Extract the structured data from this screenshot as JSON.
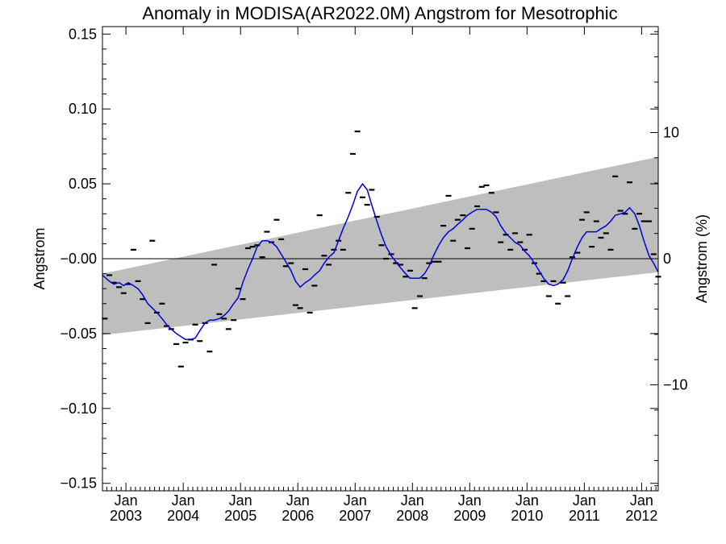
{
  "chart_data": {
    "type": "line",
    "title": "Anomaly in MODISA(AR2022.0M) Angstrom for Mesotrophic",
    "ylabel": "Angstrom",
    "y2label": "Angstrom (%)",
    "xlabel": "",
    "ylim": [
      -0.155,
      0.155
    ],
    "y2lim": [
      -18.4,
      18.4
    ],
    "xlim": [
      2002.59,
      2012.29
    ],
    "yticks": [
      -0.15,
      -0.1,
      -0.05,
      -0.0,
      0.05,
      0.1,
      0.15
    ],
    "ytick_labels": [
      "−0.15",
      "−0.10",
      "−0.05",
      "−0.00",
      "0.05",
      "0.10",
      "0.15"
    ],
    "y2ticks": [
      -10,
      0,
      10
    ],
    "y2tick_labels": [
      "−10",
      "0",
      "10"
    ],
    "xticks": [
      {
        "x": 2003.0,
        "top": "Jan",
        "bottom": "2003"
      },
      {
        "x": 2004.0,
        "top": "Jan",
        "bottom": "2004"
      },
      {
        "x": 2005.0,
        "top": "Jan",
        "bottom": "2005"
      },
      {
        "x": 2006.0,
        "top": "Jan",
        "bottom": "2006"
      },
      {
        "x": 2007.0,
        "top": "Jan",
        "bottom": "2007"
      },
      {
        "x": 2008.0,
        "top": "Jan",
        "bottom": "2008"
      },
      {
        "x": 2009.0,
        "top": "Jan",
        "bottom": "2009"
      },
      {
        "x": 2010.0,
        "top": "Jan",
        "bottom": "2010"
      },
      {
        "x": 2011.0,
        "top": "Jan",
        "bottom": "2011"
      },
      {
        "x": 2012.0,
        "top": "Jan",
        "bottom": "2012"
      }
    ],
    "band": {
      "x": [
        2002.59,
        2012.29
      ],
      "upper": [
        -0.01,
        0.068
      ],
      "lower": [
        -0.051,
        -0.009
      ],
      "color": "#bebebe"
    },
    "zero_line": 0.0,
    "series": [
      {
        "style": "dash",
        "color": "#000000",
        "points": [
          [
            2002.63,
            -0.04
          ],
          [
            2002.71,
            -0.011
          ],
          [
            2002.79,
            -0.016
          ],
          [
            2002.88,
            -0.019
          ],
          [
            2002.96,
            -0.023
          ],
          [
            2003.04,
            -0.017
          ],
          [
            2003.13,
            0.006
          ],
          [
            2003.21,
            -0.015
          ],
          [
            2003.29,
            -0.027
          ],
          [
            2003.38,
            -0.043
          ],
          [
            2003.46,
            0.012
          ],
          [
            2003.54,
            -0.036
          ],
          [
            2003.63,
            -0.03
          ],
          [
            2003.71,
            -0.045
          ],
          [
            2003.79,
            -0.047
          ],
          [
            2003.88,
            -0.057
          ],
          [
            2003.96,
            -0.072
          ],
          [
            2004.04,
            -0.056
          ],
          [
            2004.13,
            -0.054
          ],
          [
            2004.21,
            -0.044
          ],
          [
            2004.29,
            -0.055
          ],
          [
            2004.38,
            -0.043
          ],
          [
            2004.46,
            -0.062
          ],
          [
            2004.54,
            -0.004
          ],
          [
            2004.63,
            -0.037
          ],
          [
            2004.71,
            -0.04
          ],
          [
            2004.79,
            -0.047
          ],
          [
            2004.88,
            -0.041
          ],
          [
            2004.96,
            -0.02
          ],
          [
            2005.04,
            -0.027
          ],
          [
            2005.13,
            0.007
          ],
          [
            2005.21,
            0.008
          ],
          [
            2005.29,
            0.009
          ],
          [
            2005.38,
            0.001
          ],
          [
            2005.46,
            0.018
          ],
          [
            2005.54,
            0.011
          ],
          [
            2005.63,
            0.026
          ],
          [
            2005.71,
            0.013
          ],
          [
            2005.79,
            -0.005
          ],
          [
            2005.88,
            -0.003
          ],
          [
            2005.96,
            -0.031
          ],
          [
            2006.04,
            -0.033
          ],
          [
            2006.13,
            -0.007
          ],
          [
            2006.21,
            -0.036
          ],
          [
            2006.29,
            -0.018
          ],
          [
            2006.38,
            0.029
          ],
          [
            2006.46,
            0.002
          ],
          [
            2006.54,
            -0.004
          ],
          [
            2006.63,
            0.006
          ],
          [
            2006.71,
            0.012
          ],
          [
            2006.79,
            0.006
          ],
          [
            2006.88,
            0.044
          ],
          [
            2006.96,
            0.07
          ],
          [
            2007.04,
            0.085
          ],
          [
            2007.13,
            0.041
          ],
          [
            2007.21,
            0.036
          ],
          [
            2007.29,
            0.046
          ],
          [
            2007.38,
            0.028
          ],
          [
            2007.46,
            0.009
          ],
          [
            2007.54,
            0.0
          ],
          [
            2007.63,
            0.003
          ],
          [
            2007.71,
            -0.003
          ],
          [
            2007.79,
            -0.004
          ],
          [
            2007.88,
            -0.012
          ],
          [
            2007.96,
            -0.008
          ],
          [
            2008.04,
            -0.033
          ],
          [
            2008.13,
            -0.025
          ],
          [
            2008.21,
            -0.013
          ],
          [
            2008.29,
            -0.003
          ],
          [
            2008.38,
            -0.002
          ],
          [
            2008.46,
            -0.002
          ],
          [
            2008.54,
            0.022
          ],
          [
            2008.63,
            0.042
          ],
          [
            2008.71,
            0.012
          ],
          [
            2008.79,
            0.026
          ],
          [
            2008.88,
            0.029
          ],
          [
            2008.96,
            0.007
          ],
          [
            2009.04,
            0.02
          ],
          [
            2009.13,
            0.035
          ],
          [
            2009.21,
            0.048
          ],
          [
            2009.29,
            0.049
          ],
          [
            2009.38,
            0.044
          ],
          [
            2009.46,
            0.031
          ],
          [
            2009.54,
            0.011
          ],
          [
            2009.63,
            0.016
          ],
          [
            2009.71,
            0.006
          ],
          [
            2009.79,
            0.017
          ],
          [
            2009.88,
            0.011
          ],
          [
            2009.96,
            0.006
          ],
          [
            2010.04,
            0.016
          ],
          [
            2010.13,
            -0.003
          ],
          [
            2010.21,
            -0.01
          ],
          [
            2010.29,
            -0.015
          ],
          [
            2010.38,
            -0.025
          ],
          [
            2010.46,
            -0.015
          ],
          [
            2010.54,
            -0.03
          ],
          [
            2010.63,
            -0.016
          ],
          [
            2010.71,
            -0.025
          ],
          [
            2010.79,
            0.001
          ],
          [
            2010.88,
            0.004
          ],
          [
            2010.96,
            0.026
          ],
          [
            2011.04,
            0.031
          ],
          [
            2011.13,
            0.008
          ],
          [
            2011.21,
            0.025
          ],
          [
            2011.29,
            0.014
          ],
          [
            2011.38,
            0.017
          ],
          [
            2011.46,
            0.006
          ],
          [
            2011.54,
            0.055
          ],
          [
            2011.63,
            0.032
          ],
          [
            2011.71,
            0.03
          ],
          [
            2011.79,
            0.051
          ],
          [
            2011.88,
            0.02
          ],
          [
            2011.96,
            0.03
          ],
          [
            2012.04,
            0.025
          ],
          [
            2012.13,
            0.025
          ],
          [
            2012.21,
            0.003
          ],
          [
            2012.29,
            -0.012
          ]
        ]
      },
      {
        "style": "line",
        "color": "#0000dd",
        "points": [
          [
            2002.59,
            -0.011
          ],
          [
            2002.71,
            -0.015
          ],
          [
            2002.79,
            -0.017
          ],
          [
            2002.88,
            -0.016
          ],
          [
            2002.96,
            -0.018
          ],
          [
            2003.04,
            -0.016
          ],
          [
            2003.13,
            -0.018
          ],
          [
            2003.21,
            -0.02
          ],
          [
            2003.29,
            -0.024
          ],
          [
            2003.38,
            -0.03
          ],
          [
            2003.46,
            -0.033
          ],
          [
            2003.54,
            -0.036
          ],
          [
            2003.63,
            -0.04
          ],
          [
            2003.71,
            -0.044
          ],
          [
            2003.79,
            -0.047
          ],
          [
            2003.88,
            -0.05
          ],
          [
            2003.96,
            -0.052
          ],
          [
            2004.04,
            -0.054
          ],
          [
            2004.13,
            -0.054
          ],
          [
            2004.21,
            -0.053
          ],
          [
            2004.29,
            -0.048
          ],
          [
            2004.38,
            -0.043
          ],
          [
            2004.46,
            -0.041
          ],
          [
            2004.54,
            -0.041
          ],
          [
            2004.63,
            -0.04
          ],
          [
            2004.71,
            -0.038
          ],
          [
            2004.79,
            -0.035
          ],
          [
            2004.88,
            -0.03
          ],
          [
            2004.96,
            -0.026
          ],
          [
            2005.04,
            -0.016
          ],
          [
            2005.13,
            -0.007
          ],
          [
            2005.21,
            0.0
          ],
          [
            2005.29,
            0.008
          ],
          [
            2005.38,
            0.012
          ],
          [
            2005.46,
            0.012
          ],
          [
            2005.54,
            0.011
          ],
          [
            2005.63,
            0.008
          ],
          [
            2005.71,
            0.003
          ],
          [
            2005.79,
            -0.002
          ],
          [
            2005.88,
            -0.008
          ],
          [
            2005.96,
            -0.015
          ],
          [
            2006.04,
            -0.019
          ],
          [
            2006.13,
            -0.016
          ],
          [
            2006.21,
            -0.014
          ],
          [
            2006.29,
            -0.011
          ],
          [
            2006.38,
            -0.008
          ],
          [
            2006.46,
            -0.003
          ],
          [
            2006.54,
            0.001
          ],
          [
            2006.63,
            0.004
          ],
          [
            2006.71,
            0.012
          ],
          [
            2006.79,
            0.02
          ],
          [
            2006.88,
            0.028
          ],
          [
            2006.96,
            0.036
          ],
          [
            2007.04,
            0.045
          ],
          [
            2007.13,
            0.05
          ],
          [
            2007.21,
            0.046
          ],
          [
            2007.29,
            0.036
          ],
          [
            2007.38,
            0.025
          ],
          [
            2007.46,
            0.016
          ],
          [
            2007.54,
            0.008
          ],
          [
            2007.63,
            0.002
          ],
          [
            2007.71,
            -0.002
          ],
          [
            2007.79,
            -0.006
          ],
          [
            2007.88,
            -0.01
          ],
          [
            2007.96,
            -0.013
          ],
          [
            2008.04,
            -0.013
          ],
          [
            2008.13,
            -0.013
          ],
          [
            2008.21,
            -0.01
          ],
          [
            2008.29,
            -0.005
          ],
          [
            2008.38,
            0.003
          ],
          [
            2008.46,
            0.009
          ],
          [
            2008.54,
            0.014
          ],
          [
            2008.63,
            0.018
          ],
          [
            2008.71,
            0.02
          ],
          [
            2008.79,
            0.023
          ],
          [
            2008.88,
            0.026
          ],
          [
            2008.96,
            0.029
          ],
          [
            2009.04,
            0.031
          ],
          [
            2009.13,
            0.033
          ],
          [
            2009.21,
            0.033
          ],
          [
            2009.29,
            0.033
          ],
          [
            2009.38,
            0.031
          ],
          [
            2009.46,
            0.028
          ],
          [
            2009.54,
            0.022
          ],
          [
            2009.63,
            0.017
          ],
          [
            2009.71,
            0.014
          ],
          [
            2009.79,
            0.011
          ],
          [
            2009.88,
            0.009
          ],
          [
            2009.96,
            0.005
          ],
          [
            2010.04,
            0.002
          ],
          [
            2010.13,
            -0.003
          ],
          [
            2010.21,
            -0.008
          ],
          [
            2010.29,
            -0.013
          ],
          [
            2010.38,
            -0.017
          ],
          [
            2010.46,
            -0.018
          ],
          [
            2010.54,
            -0.017
          ],
          [
            2010.63,
            -0.014
          ],
          [
            2010.71,
            -0.008
          ],
          [
            2010.79,
            0.0
          ],
          [
            2010.88,
            0.008
          ],
          [
            2010.96,
            0.014
          ],
          [
            2011.04,
            0.018
          ],
          [
            2011.13,
            0.018
          ],
          [
            2011.21,
            0.018
          ],
          [
            2011.29,
            0.02
          ],
          [
            2011.38,
            0.022
          ],
          [
            2011.46,
            0.025
          ],
          [
            2011.54,
            0.029
          ],
          [
            2011.63,
            0.03
          ],
          [
            2011.71,
            0.031
          ],
          [
            2011.79,
            0.034
          ],
          [
            2011.88,
            0.03
          ],
          [
            2011.96,
            0.022
          ],
          [
            2012.04,
            0.012
          ],
          [
            2012.13,
            0.002
          ],
          [
            2012.21,
            -0.003
          ],
          [
            2012.29,
            -0.009
          ]
        ]
      }
    ]
  }
}
